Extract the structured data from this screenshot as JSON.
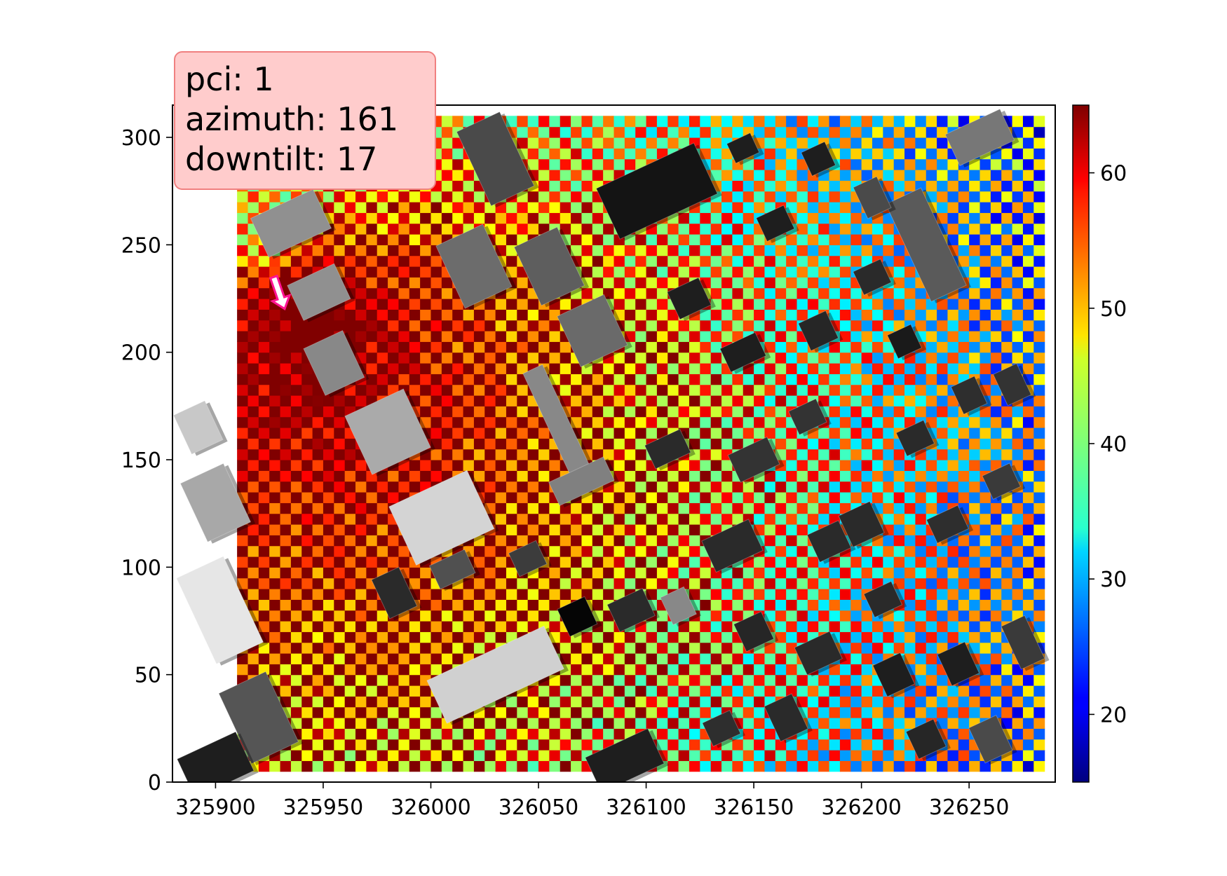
{
  "info_box": {
    "pci": "pci: 1",
    "azimuth": "azimuth: 161",
    "downtilt": "downtilt: 17"
  },
  "colors": {
    "antenna_marker": "#ff1493",
    "box_fill": "#ffcccc",
    "box_border": "#f08080"
  },
  "chart_data": {
    "type": "heatmap",
    "title": "",
    "xlabel": "",
    "ylabel": "",
    "xlim": [
      325880,
      326290
    ],
    "ylim": [
      0,
      315
    ],
    "xticks": [
      325900,
      325950,
      326000,
      326050,
      326100,
      326150,
      326200,
      326250
    ],
    "xtick_labels": [
      "325900",
      "325950",
      "326000",
      "326050",
      "326100",
      "326150",
      "326200",
      "326250"
    ],
    "yticks": [
      0,
      50,
      100,
      150,
      200,
      250,
      300
    ],
    "ytick_labels": [
      "0",
      "50",
      "100",
      "150",
      "200",
      "250",
      "300"
    ],
    "colorbar": {
      "colormap": "jet",
      "range": [
        15,
        65
      ],
      "ticks": [
        20,
        30,
        40,
        50,
        60
      ],
      "tick_labels": [
        "20",
        "30",
        "40",
        "50",
        "60"
      ]
    },
    "heatmap_extent": {
      "x": [
        325910,
        326285
      ],
      "y": [
        5,
        310
      ]
    },
    "cell_size": 5,
    "antenna": {
      "x": 325927,
      "y": 235,
      "azimuth": 161
    },
    "buildings": [
      {
        "x": 326030,
        "y": 290,
        "w": 22,
        "h": 38,
        "angle": 25,
        "shade": "#4a4a4a"
      },
      {
        "x": 325935,
        "y": 260,
        "w": 32,
        "h": 20,
        "angle": 25,
        "shade": "#909090"
      },
      {
        "x": 325948,
        "y": 228,
        "w": 24,
        "h": 18,
        "angle": 25,
        "shade": "#909090"
      },
      {
        "x": 325955,
        "y": 195,
        "w": 20,
        "h": 24,
        "angle": 25,
        "shade": "#888888"
      },
      {
        "x": 325980,
        "y": 163,
        "w": 30,
        "h": 30,
        "angle": 25,
        "shade": "#aaaaaa"
      },
      {
        "x": 326005,
        "y": 123,
        "w": 40,
        "h": 30,
        "angle": 25,
        "shade": "#d4d4d4"
      },
      {
        "x": 325900,
        "y": 130,
        "w": 22,
        "h": 30,
        "angle": 25,
        "shade": "#a8a8a8"
      },
      {
        "x": 325892,
        "y": 165,
        "w": 16,
        "h": 20,
        "angle": 25,
        "shade": "#c8c8c8"
      },
      {
        "x": 325902,
        "y": 80,
        "w": 24,
        "h": 44,
        "angle": 25,
        "shade": "#e6e6e6"
      },
      {
        "x": 325920,
        "y": 30,
        "w": 24,
        "h": 36,
        "angle": 25,
        "shade": "#555555"
      },
      {
        "x": 325900,
        "y": 8,
        "w": 30,
        "h": 20,
        "angle": 25,
        "shade": "#1e1e1e"
      },
      {
        "x": 326020,
        "y": 240,
        "w": 24,
        "h": 32,
        "angle": 25,
        "shade": "#6c6c6c"
      },
      {
        "x": 326055,
        "y": 240,
        "w": 22,
        "h": 30,
        "angle": 25,
        "shade": "#5e5e5e"
      },
      {
        "x": 326075,
        "y": 210,
        "w": 24,
        "h": 26,
        "angle": 25,
        "shade": "#6a6a6a"
      },
      {
        "x": 326060,
        "y": 165,
        "w": 10,
        "h": 60,
        "angle": 25,
        "shade": "#888888"
      },
      {
        "x": 326070,
        "y": 140,
        "w": 28,
        "h": 12,
        "angle": 25,
        "shade": "#808080"
      },
      {
        "x": 326105,
        "y": 275,
        "w": 50,
        "h": 26,
        "angle": 25,
        "shade": "#141414"
      },
      {
        "x": 326030,
        "y": 50,
        "w": 60,
        "h": 22,
        "angle": 25,
        "shade": "#d0d0d0"
      },
      {
        "x": 325983,
        "y": 88,
        "w": 14,
        "h": 20,
        "angle": 25,
        "shade": "#2a2a2a"
      },
      {
        "x": 326010,
        "y": 99,
        "w": 18,
        "h": 12,
        "angle": 25,
        "shade": "#505050"
      },
      {
        "x": 326045,
        "y": 104,
        "w": 14,
        "h": 12,
        "angle": 25,
        "shade": "#3c3c3c"
      },
      {
        "x": 326068,
        "y": 77,
        "w": 14,
        "h": 14,
        "angle": 25,
        "shade": "#050505"
      },
      {
        "x": 326093,
        "y": 80,
        "w": 18,
        "h": 14,
        "angle": 25,
        "shade": "#2a2a2a"
      },
      {
        "x": 326115,
        "y": 82,
        "w": 12,
        "h": 14,
        "angle": 25,
        "shade": "#888888"
      },
      {
        "x": 326140,
        "y": 110,
        "w": 24,
        "h": 16,
        "angle": 25,
        "shade": "#2a2a2a"
      },
      {
        "x": 326185,
        "y": 112,
        "w": 16,
        "h": 14,
        "angle": 25,
        "shade": "#2a2a2a"
      },
      {
        "x": 326150,
        "y": 150,
        "w": 20,
        "h": 14,
        "angle": 25,
        "shade": "#333333"
      },
      {
        "x": 326110,
        "y": 155,
        "w": 18,
        "h": 12,
        "angle": 25,
        "shade": "#2a2a2a"
      },
      {
        "x": 326230,
        "y": 250,
        "w": 18,
        "h": 50,
        "angle": 25,
        "shade": "#5a5a5a"
      },
      {
        "x": 326255,
        "y": 300,
        "w": 28,
        "h": 16,
        "angle": 25,
        "shade": "#777777"
      },
      {
        "x": 326205,
        "y": 272,
        "w": 12,
        "h": 16,
        "angle": 25,
        "shade": "#4a4a4a"
      },
      {
        "x": 326160,
        "y": 260,
        "w": 14,
        "h": 12,
        "angle": 25,
        "shade": "#1e1e1e"
      },
      {
        "x": 326120,
        "y": 225,
        "w": 16,
        "h": 14,
        "angle": 25,
        "shade": "#1e1e1e"
      },
      {
        "x": 326180,
        "y": 210,
        "w": 14,
        "h": 14,
        "angle": 25,
        "shade": "#262626"
      },
      {
        "x": 326220,
        "y": 205,
        "w": 12,
        "h": 12,
        "angle": 25,
        "shade": "#1a1a1a"
      },
      {
        "x": 326250,
        "y": 180,
        "w": 12,
        "h": 14,
        "angle": 25,
        "shade": "#2e2e2e"
      },
      {
        "x": 326270,
        "y": 185,
        "w": 12,
        "h": 16,
        "angle": 25,
        "shade": "#333333"
      },
      {
        "x": 326265,
        "y": 140,
        "w": 14,
        "h": 12,
        "angle": 25,
        "shade": "#3a3a3a"
      },
      {
        "x": 326200,
        "y": 120,
        "w": 16,
        "h": 16,
        "angle": 25,
        "shade": "#2a2a2a"
      },
      {
        "x": 326240,
        "y": 120,
        "w": 16,
        "h": 12,
        "angle": 25,
        "shade": "#2e2e2e"
      },
      {
        "x": 326180,
        "y": 60,
        "w": 18,
        "h": 14,
        "angle": 25,
        "shade": "#2a2a2a"
      },
      {
        "x": 326215,
        "y": 50,
        "w": 14,
        "h": 16,
        "angle": 25,
        "shade": "#1e1e1e"
      },
      {
        "x": 326245,
        "y": 55,
        "w": 14,
        "h": 16,
        "angle": 25,
        "shade": "#1e1e1e"
      },
      {
        "x": 326275,
        "y": 65,
        "w": 12,
        "h": 22,
        "angle": 25,
        "shade": "#3a3a3a"
      },
      {
        "x": 326230,
        "y": 20,
        "w": 14,
        "h": 14,
        "angle": 25,
        "shade": "#262626"
      },
      {
        "x": 326260,
        "y": 20,
        "w": 14,
        "h": 18,
        "angle": 25,
        "shade": "#4a4a4a"
      },
      {
        "x": 326165,
        "y": 30,
        "w": 14,
        "h": 18,
        "angle": 25,
        "shade": "#2a2a2a"
      },
      {
        "x": 326135,
        "y": 25,
        "w": 14,
        "h": 12,
        "angle": 25,
        "shade": "#2e2e2e"
      },
      {
        "x": 326090,
        "y": 10,
        "w": 32,
        "h": 18,
        "angle": 25,
        "shade": "#1e1e1e"
      },
      {
        "x": 326210,
        "y": 85,
        "w": 14,
        "h": 12,
        "angle": 25,
        "shade": "#2a2a2a"
      },
      {
        "x": 326150,
        "y": 70,
        "w": 14,
        "h": 14,
        "angle": 25,
        "shade": "#262626"
      },
      {
        "x": 326205,
        "y": 235,
        "w": 14,
        "h": 12,
        "angle": 25,
        "shade": "#2a2a2a"
      },
      {
        "x": 326145,
        "y": 200,
        "w": 18,
        "h": 12,
        "angle": 25,
        "shade": "#1e1e1e"
      },
      {
        "x": 326175,
        "y": 170,
        "w": 14,
        "h": 12,
        "angle": 25,
        "shade": "#333333"
      },
      {
        "x": 326225,
        "y": 160,
        "w": 14,
        "h": 12,
        "angle": 25,
        "shade": "#2a2a2a"
      },
      {
        "x": 326180,
        "y": 290,
        "w": 12,
        "h": 12,
        "angle": 25,
        "shade": "#1e1e1e"
      },
      {
        "x": 326145,
        "y": 295,
        "w": 12,
        "h": 10,
        "angle": 25,
        "shade": "#1e1e1e"
      }
    ]
  }
}
